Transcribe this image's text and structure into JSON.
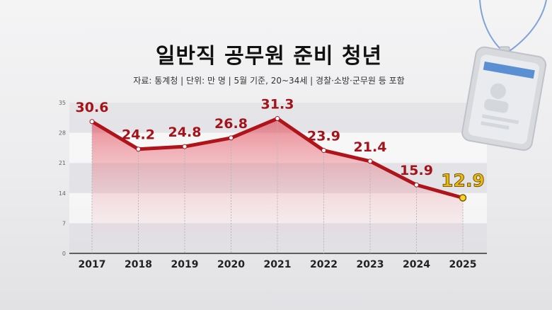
{
  "title": "일반직 공무원 준비 청년",
  "subtitle": "자료: 통계청 | 단위: 만 명 | 5월 기준, 20~34세 | 경찰·소방·군무원 등 포함",
  "colors": {
    "line": "#b0141b",
    "label": "#a5131a",
    "highlight_text": "#e8b90a",
    "highlight_point": "#f5d52b",
    "axis": "#333333"
  },
  "chart_data": {
    "type": "area",
    "title": "일반직 공무원 준비 청년",
    "categories": [
      "2017",
      "2018",
      "2019",
      "2020",
      "2021",
      "2022",
      "2023",
      "2024",
      "2025"
    ],
    "series": [
      {
        "values": [
          30.6,
          24.2,
          24.8,
          26.8,
          31.3,
          23.9,
          21.4,
          15.9,
          12.9
        ]
      }
    ],
    "data_labels": [
      "30.6",
      "24.2",
      "24.8",
      "26.8",
      "31.3",
      "23.9",
      "21.4",
      "15.9",
      "12.9"
    ],
    "highlight_index": 8,
    "ylim": [
      0,
      35
    ],
    "yticks": [
      "0",
      "7",
      "14",
      "21",
      "28",
      "35"
    ],
    "grid": "horizontal bands",
    "legend": "none"
  }
}
